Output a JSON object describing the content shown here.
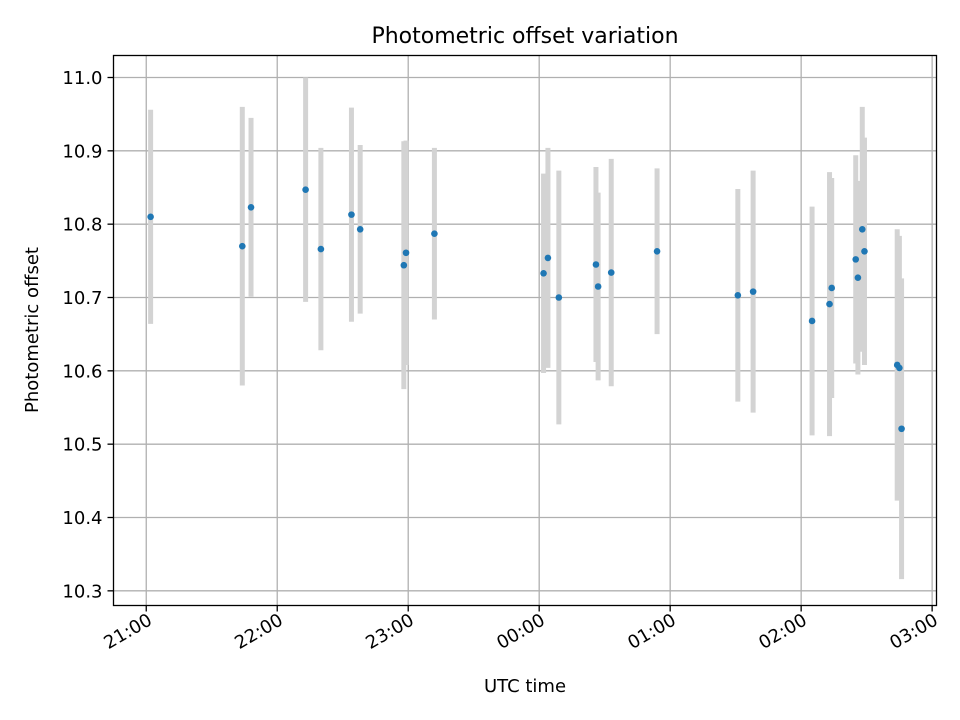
{
  "chart_data": {
    "type": "scatter",
    "title": "Photometric offset variation",
    "xlabel": "UTC time",
    "ylabel": "Photometric offset",
    "x_ticks": [
      "21:00",
      "22:00",
      "23:00",
      "00:00",
      "01:00",
      "02:00",
      "03:00"
    ],
    "y_ticks": [
      "10.3",
      "10.4",
      "10.5",
      "10.6",
      "10.7",
      "10.8",
      "10.9",
      "11.0"
    ],
    "xlim": [
      "20:45",
      "03:02"
    ],
    "ylim": [
      10.28,
      11.03
    ],
    "grid": true,
    "errorbar_color": "#d3d3d3",
    "point_color": "#1f77b4",
    "points": [
      {
        "time": "21:02",
        "y": 10.81,
        "err": 0.146
      },
      {
        "time": "21:44",
        "y": 10.77,
        "err": 0.19
      },
      {
        "time": "21:48",
        "y": 10.823,
        "err": 0.122
      },
      {
        "time": "22:13",
        "y": 10.847,
        "err": 0.153
      },
      {
        "time": "22:20",
        "y": 10.766,
        "err": 0.138
      },
      {
        "time": "22:34",
        "y": 10.813,
        "err": 0.146
      },
      {
        "time": "22:38",
        "y": 10.793,
        "err": 0.115
      },
      {
        "time": "22:58",
        "y": 10.744,
        "err": 0.169
      },
      {
        "time": "22:59",
        "y": 10.761,
        "err": 0.153
      },
      {
        "time": "23:12",
        "y": 10.787,
        "err": 0.117
      },
      {
        "time": "00:02",
        "y": 10.733,
        "err": 0.136
      },
      {
        "time": "00:04",
        "y": 10.754,
        "err": 0.15
      },
      {
        "time": "00:09",
        "y": 10.7,
        "err": 0.173
      },
      {
        "time": "00:26",
        "y": 10.745,
        "err": 0.133
      },
      {
        "time": "00:27",
        "y": 10.715,
        "err": 0.128
      },
      {
        "time": "00:33",
        "y": 10.734,
        "err": 0.155
      },
      {
        "time": "00:54",
        "y": 10.763,
        "err": 0.113
      },
      {
        "time": "01:31",
        "y": 10.703,
        "err": 0.145
      },
      {
        "time": "01:38",
        "y": 10.708,
        "err": 0.165
      },
      {
        "time": "02:05",
        "y": 10.668,
        "err": 0.156
      },
      {
        "time": "02:13",
        "y": 10.691,
        "err": 0.18
      },
      {
        "time": "02:14",
        "y": 10.713,
        "err": 0.15
      },
      {
        "time": "02:25",
        "y": 10.752,
        "err": 0.142
      },
      {
        "time": "02:26",
        "y": 10.727,
        "err": 0.132
      },
      {
        "time": "02:28",
        "y": 10.793,
        "err": 0.167
      },
      {
        "time": "02:29",
        "y": 10.763,
        "err": 0.155
      },
      {
        "time": "02:44",
        "y": 10.608,
        "err": 0.185
      },
      {
        "time": "02:45",
        "y": 10.604,
        "err": 0.18
      },
      {
        "time": "02:46",
        "y": 10.521,
        "err": 0.205
      }
    ]
  }
}
